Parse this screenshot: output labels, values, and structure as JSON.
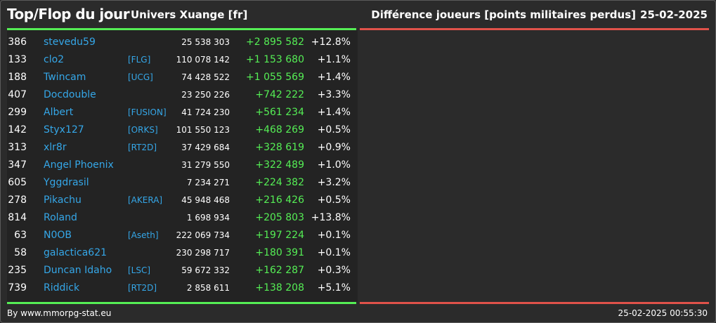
{
  "header": {
    "title": "Top/Flop du jour",
    "universe": "Univers Xuange [fr]",
    "metric": "Différence joueurs [points militaires perdus]",
    "date": "25-02-2025"
  },
  "rows": [
    {
      "rank": "386",
      "name": "stevedu59",
      "alliance": "",
      "points": "25 538 303",
      "diff": "+2 895 582",
      "pct": "+12.8%"
    },
    {
      "rank": "133",
      "name": "clo2",
      "alliance": "[FLG]",
      "points": "110 078 142",
      "diff": "+1 153 680",
      "pct": "+1.1%"
    },
    {
      "rank": "188",
      "name": "Twincam",
      "alliance": "[UCG]",
      "points": "74 428 522",
      "diff": "+1 055 569",
      "pct": "+1.4%"
    },
    {
      "rank": "407",
      "name": "Docdouble",
      "alliance": "",
      "points": "23 250 226",
      "diff": "+742 222",
      "pct": "+3.3%"
    },
    {
      "rank": "299",
      "name": "Albert",
      "alliance": "[FUSION]",
      "points": "41 724 230",
      "diff": "+561 234",
      "pct": "+1.4%"
    },
    {
      "rank": "142",
      "name": "Styx127",
      "alliance": "[ORKS]",
      "points": "101 550 123",
      "diff": "+468 269",
      "pct": "+0.5%"
    },
    {
      "rank": "313",
      "name": "xlr8r",
      "alliance": "[RT2D]",
      "points": "37 429 684",
      "diff": "+328 619",
      "pct": "+0.9%"
    },
    {
      "rank": "347",
      "name": "Angel Phoenix",
      "alliance": "",
      "points": "31 279 550",
      "diff": "+322 489",
      "pct": "+1.0%"
    },
    {
      "rank": "605",
      "name": "Yggdrasil",
      "alliance": "",
      "points": "7 234 271",
      "diff": "+224 382",
      "pct": "+3.2%"
    },
    {
      "rank": "278",
      "name": "Pikachu",
      "alliance": "[AKERA]",
      "points": "45 948 468",
      "diff": "+216 426",
      "pct": "+0.5%"
    },
    {
      "rank": "814",
      "name": "Roland",
      "alliance": "",
      "points": "1 698 934",
      "diff": "+205 803",
      "pct": "+13.8%"
    },
    {
      "rank": "63",
      "name": "N0OB",
      "alliance": "[Aseth]",
      "points": "222 069 734",
      "diff": "+197 224",
      "pct": "+0.1%"
    },
    {
      "rank": "58",
      "name": "galactica621",
      "alliance": "",
      "points": "230 298 717",
      "diff": "+180 391",
      "pct": "+0.1%"
    },
    {
      "rank": "235",
      "name": "Duncan Idaho",
      "alliance": "[LSC]",
      "points": "59 672 332",
      "diff": "+162 287",
      "pct": "+0.3%"
    },
    {
      "rank": "739",
      "name": "Riddick",
      "alliance": "[RT2D]",
      "points": "2 858 611",
      "diff": "+138 208",
      "pct": "+5.1%"
    }
  ],
  "footer": {
    "credit": "By www.mmorpg-stat.eu",
    "timestamp": "25-02-2025 00:55:30"
  },
  "colors": {
    "background": "#2b2b2b",
    "panel": "#232323",
    "top_accent": "#55ee55",
    "flop_accent": "#e0524a",
    "link": "#35a7e8"
  }
}
